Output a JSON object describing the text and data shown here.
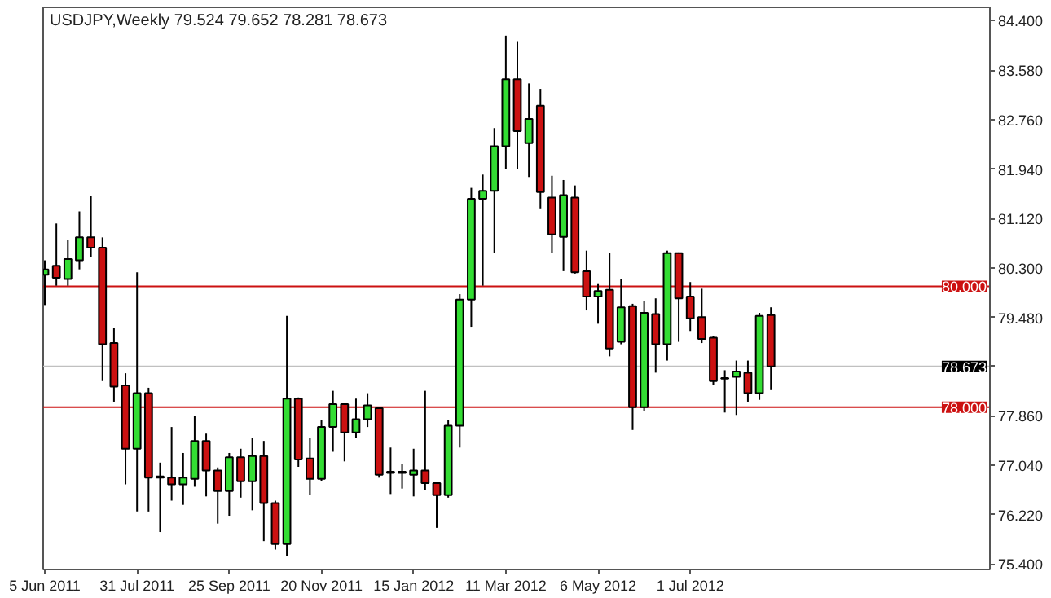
{
  "chart_data": {
    "type": "candlestick",
    "title": "USDJPY,Weekly  79.524 79.652 78.281 78.673",
    "x": [
      "2011-06-05",
      "2011-06-12",
      "2011-06-19",
      "2011-06-26",
      "2011-07-03",
      "2011-07-10",
      "2011-07-17",
      "2011-07-24",
      "2011-07-31",
      "2011-08-07",
      "2011-08-14",
      "2011-08-21",
      "2011-08-28",
      "2011-09-04",
      "2011-09-11",
      "2011-09-18",
      "2011-09-25",
      "2011-10-02",
      "2011-10-09",
      "2011-10-16",
      "2011-10-23",
      "2011-10-30",
      "2011-11-06",
      "2011-11-13",
      "2011-11-20",
      "2011-11-27",
      "2011-12-04",
      "2011-12-11",
      "2011-12-18",
      "2011-12-25",
      "2012-01-01",
      "2012-01-08",
      "2012-01-15",
      "2012-01-22",
      "2012-01-29",
      "2012-02-05",
      "2012-02-12",
      "2012-02-19",
      "2012-02-26",
      "2012-03-04",
      "2012-03-11",
      "2012-03-18",
      "2012-03-25",
      "2012-04-01",
      "2012-04-08",
      "2012-04-15",
      "2012-04-22",
      "2012-04-29",
      "2012-05-06",
      "2012-05-13",
      "2012-05-20",
      "2012-05-27",
      "2012-06-03",
      "2012-06-10",
      "2012-06-17",
      "2012-06-24",
      "2012-07-01",
      "2012-07-08",
      "2012-07-15",
      "2012-07-22",
      "2012-07-29",
      "2012-08-05",
      "2012-08-12",
      "2012-08-19"
    ],
    "ohlc": [
      [
        80.19,
        80.43,
        79.69,
        80.28
      ],
      [
        80.34,
        81.04,
        80.01,
        80.14
      ],
      [
        80.12,
        80.77,
        80.01,
        80.45
      ],
      [
        80.43,
        81.24,
        80.28,
        80.81
      ],
      [
        80.81,
        81.49,
        80.48,
        80.64
      ],
      [
        80.64,
        80.81,
        78.43,
        79.04
      ],
      [
        79.06,
        79.31,
        78.09,
        78.34
      ],
      [
        78.36,
        78.56,
        76.72,
        77.31
      ],
      [
        77.31,
        80.23,
        76.27,
        78.23
      ],
      [
        78.23,
        78.32,
        76.27,
        76.83
      ],
      [
        76.85,
        77.08,
        75.93,
        76.83
      ],
      [
        76.83,
        77.67,
        76.45,
        76.72
      ],
      [
        76.72,
        77.24,
        76.38,
        76.83
      ],
      [
        76.81,
        77.85,
        76.68,
        77.44
      ],
      [
        77.44,
        77.56,
        76.52,
        76.95
      ],
      [
        76.95,
        77.0,
        76.07,
        76.61
      ],
      [
        76.61,
        77.24,
        76.2,
        77.17
      ],
      [
        77.17,
        77.31,
        76.5,
        76.77
      ],
      [
        76.77,
        77.49,
        76.29,
        77.19
      ],
      [
        77.19,
        77.44,
        75.78,
        76.41
      ],
      [
        76.41,
        76.45,
        75.64,
        75.73
      ],
      [
        75.73,
        79.51,
        75.53,
        78.14
      ],
      [
        78.14,
        78.16,
        77.01,
        77.13
      ],
      [
        77.15,
        77.49,
        76.54,
        76.81
      ],
      [
        76.81,
        77.78,
        76.77,
        77.67
      ],
      [
        77.67,
        78.27,
        77.26,
        78.05
      ],
      [
        78.05,
        78.06,
        77.1,
        77.58
      ],
      [
        77.58,
        78.14,
        77.49,
        77.8
      ],
      [
        77.8,
        78.23,
        77.67,
        78.03
      ],
      [
        77.98,
        78.0,
        76.83,
        76.88
      ],
      [
        76.93,
        77.33,
        76.56,
        76.91
      ],
      [
        76.93,
        77.06,
        76.65,
        76.91
      ],
      [
        76.88,
        77.31,
        76.52,
        76.95
      ],
      [
        76.95,
        78.27,
        76.63,
        76.74
      ],
      [
        76.74,
        76.75,
        76.0,
        76.54
      ],
      [
        76.54,
        77.78,
        76.5,
        77.69
      ],
      [
        77.69,
        79.87,
        77.33,
        79.78
      ],
      [
        79.78,
        81.63,
        79.33,
        81.45
      ],
      [
        81.45,
        81.85,
        80.01,
        81.58
      ],
      [
        81.58,
        82.62,
        80.55,
        82.32
      ],
      [
        82.32,
        84.15,
        81.94,
        83.43
      ],
      [
        83.43,
        84.06,
        81.94,
        82.57
      ],
      [
        82.37,
        83.36,
        81.81,
        82.77
      ],
      [
        82.99,
        83.27,
        81.29,
        81.56
      ],
      [
        81.47,
        81.83,
        80.55,
        80.86
      ],
      [
        80.82,
        81.76,
        80.25,
        81.51
      ],
      [
        81.47,
        81.67,
        80.21,
        80.23
      ],
      [
        80.25,
        80.59,
        79.6,
        79.83
      ],
      [
        79.83,
        80.05,
        79.38,
        79.92
      ],
      [
        79.94,
        80.55,
        78.84,
        78.97
      ],
      [
        79.08,
        80.12,
        79.04,
        79.65
      ],
      [
        79.67,
        79.71,
        77.62,
        78.0
      ],
      [
        78.0,
        79.76,
        77.94,
        79.56
      ],
      [
        79.54,
        79.8,
        78.57,
        79.04
      ],
      [
        79.04,
        80.59,
        78.77,
        80.55
      ],
      [
        80.55,
        80.56,
        79.08,
        79.8
      ],
      [
        79.83,
        80.07,
        79.26,
        79.47
      ],
      [
        79.49,
        79.96,
        79.06,
        79.13
      ],
      [
        79.15,
        79.17,
        78.36,
        78.43
      ],
      [
        78.48,
        78.61,
        77.91,
        78.47
      ],
      [
        78.5,
        78.77,
        77.87,
        78.59
      ],
      [
        78.57,
        78.77,
        78.09,
        78.23
      ],
      [
        78.23,
        79.56,
        78.12,
        79.51
      ],
      [
        79.524,
        79.652,
        78.281,
        78.673
      ]
    ],
    "colors": [
      "#33dd33",
      "#cc1111",
      "#33dd33",
      "#33dd33",
      "#cc1111",
      "#cc1111",
      "#cc1111",
      "#cc1111",
      "#33dd33",
      "#cc1111",
      "#000000",
      "#cc1111",
      "#33dd33",
      "#33dd33",
      "#cc1111",
      "#cc1111",
      "#33dd33",
      "#cc1111",
      "#33dd33",
      "#cc1111",
      "#cc1111",
      "#33dd33",
      "#cc1111",
      "#cc1111",
      "#33dd33",
      "#33dd33",
      "#cc1111",
      "#33dd33",
      "#33dd33",
      "#cc1111",
      "#000000",
      "#000000",
      "#33dd33",
      "#cc1111",
      "#cc1111",
      "#33dd33",
      "#33dd33",
      "#33dd33",
      "#33dd33",
      "#33dd33",
      "#33dd33",
      "#cc1111",
      "#33dd33",
      "#cc1111",
      "#cc1111",
      "#33dd33",
      "#cc1111",
      "#cc1111",
      "#33dd33",
      "#cc1111",
      "#33dd33",
      "#cc1111",
      "#33dd33",
      "#cc1111",
      "#33dd33",
      "#cc1111",
      "#cc1111",
      "#cc1111",
      "#cc1111",
      "#000000",
      "#33dd33",
      "#cc1111",
      "#33dd33",
      "#cc1111"
    ],
    "xlim": [
      "2011-06-04",
      "2012-12-30"
    ],
    "xticks": [
      {
        "value": "2011-06-05",
        "label": "5 Jun 2011"
      },
      {
        "value": "2011-07-31",
        "label": "31 Jul 2011"
      },
      {
        "value": "2011-09-25",
        "label": "25 Sep 2011"
      },
      {
        "value": "2011-11-20",
        "label": "20 Nov 2011"
      },
      {
        "value": "2012-01-15",
        "label": "15 Jan 2012"
      },
      {
        "value": "2012-03-11",
        "label": "11 Mar 2012"
      },
      {
        "value": "2012-05-06",
        "label": "6 May 2012"
      },
      {
        "value": "2012-07-01",
        "label": "1 Jul 2012"
      }
    ],
    "ylim": [
      75.31,
      84.62
    ],
    "yticks": [
      {
        "value": 75.4,
        "label": "75.400"
      },
      {
        "value": 76.22,
        "label": "76.220"
      },
      {
        "value": 77.04,
        "label": "77.040"
      },
      {
        "value": 77.86,
        "label": "77.860"
      },
      {
        "value": 78.68,
        "label": null
      },
      {
        "value": 79.48,
        "label": "79.480"
      },
      {
        "value": 80.3,
        "label": "80.300"
      },
      {
        "value": 81.12,
        "label": "81.120"
      },
      {
        "value": 81.94,
        "label": "81.940"
      },
      {
        "value": 82.76,
        "label": "82.760"
      },
      {
        "value": 83.58,
        "label": "83.580"
      },
      {
        "value": 84.4,
        "label": "84.400"
      }
    ],
    "ref_lines": [
      {
        "axis": "y",
        "value": 80.0,
        "label": "80.000",
        "color": "#cc1111"
      },
      {
        "axis": "y",
        "value": 78.0,
        "label": "78.000",
        "color": "#cc1111"
      },
      {
        "axis": "y",
        "value": 78.673,
        "label": "78.673",
        "color": "#c0c0c0"
      }
    ],
    "grid": false
  }
}
